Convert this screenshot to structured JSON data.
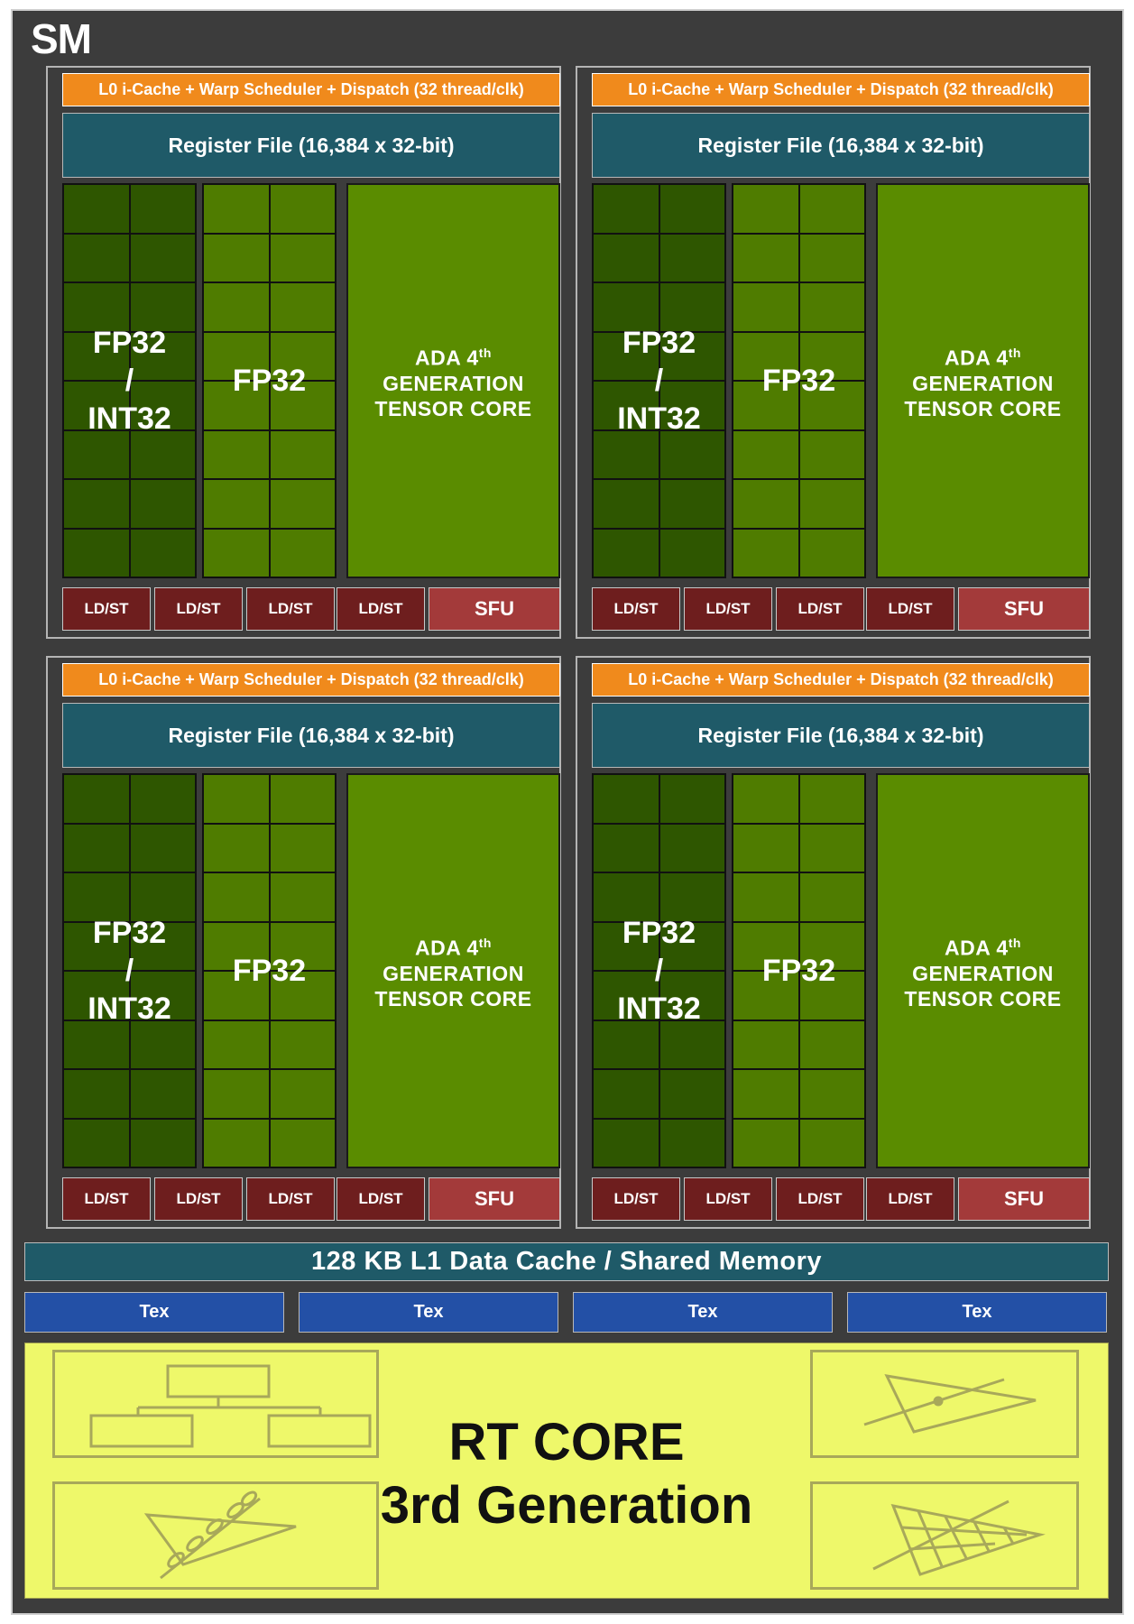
{
  "sm": {
    "title": "SM"
  },
  "processing_block": {
    "scheduler": "L0 i-Cache + Warp Scheduler + Dispatch (32 thread/clk)",
    "register_file": "Register File (16,384 x 32-bit)",
    "int_unit": {
      "line1": "FP32",
      "line2": "/",
      "line3": "INT32"
    },
    "fp_unit": "FP32",
    "tensor_core": {
      "line1_main": "ADA 4",
      "line1_sup": "th",
      "line2": "GENERATION",
      "line3": "TENSOR CORE"
    },
    "ldst_units": [
      "LD/ST",
      "LD/ST",
      "LD/ST",
      "LD/ST"
    ],
    "sfu": "SFU"
  },
  "l1_cache": "128 KB L1 Data Cache / Shared Memory",
  "tex_units": [
    "Tex",
    "Tex",
    "Tex",
    "Tex"
  ],
  "rt_core": {
    "line1": "RT CORE",
    "line2": "3rd Generation"
  },
  "colors": {
    "background": "#3c3c3c",
    "scheduler": "#f08a1c",
    "register_file": "#1f5a68",
    "int_core": "#2e5600",
    "fp_core": "#4f7c00",
    "tensor_core": "#5a8c00",
    "ldst": "#6e1e1e",
    "sfu": "#a33a3a",
    "tex": "#2350a6",
    "rt_core": "#eef86a"
  }
}
